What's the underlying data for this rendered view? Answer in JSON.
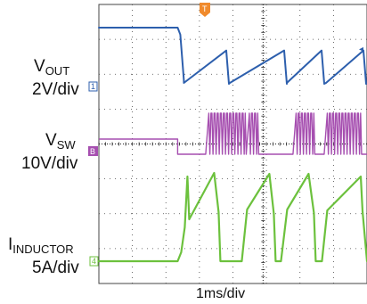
{
  "chart_data": {
    "type": "line",
    "title": "",
    "grid": true,
    "x_divisions": 8,
    "y_divisions": 8,
    "xlabel": "1ms/div",
    "x_unit_per_div": "1ms",
    "colors": {
      "vout": "#2d5fad",
      "vsw": "#a64fb0",
      "inductor": "#6cc13d",
      "trigger": "#f08a2c",
      "grid": "#444444"
    },
    "channels": [
      {
        "id": "vout",
        "name_main": "V",
        "name_sub": "OUT",
        "scale": "2V/div",
        "marker": "1",
        "before_trigger_div": 0.2,
        "dropout_div": 2.6,
        "ripple_div": 0.75
      },
      {
        "id": "vsw",
        "name_main": "V",
        "name_sub": "SW",
        "scale": "10V/div",
        "marker": "B",
        "high_div": 1.1,
        "low_div": 0.0
      },
      {
        "id": "inductor",
        "name_main": "I",
        "name_sub": "INDUCTOR",
        "scale": "5A/div",
        "marker": "4",
        "peak_div": 3.1,
        "baseline_div": 0.0
      }
    ],
    "trigger": {
      "label": "T",
      "time_div": 2.35
    },
    "right_marker": "◂"
  }
}
